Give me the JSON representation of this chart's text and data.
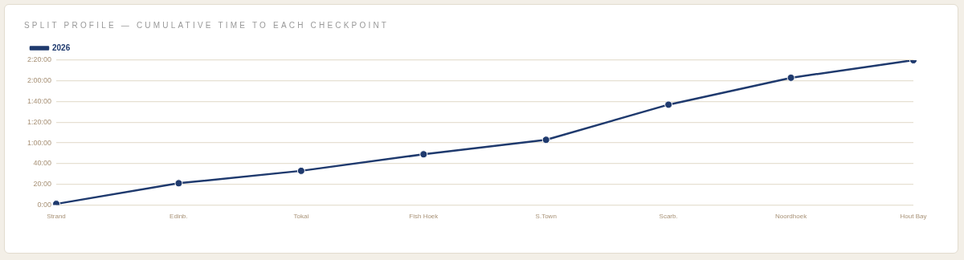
{
  "chart_data": {
    "type": "line",
    "title": "SPLIT PROFILE — CUMULATIVE TIME TO EACH CHECKPOINT",
    "categories": [
      "Strand",
      "Edinb.",
      "Tokai",
      "Fish Hoek",
      "S.Town",
      "Scarb.",
      "Noordhoek",
      "Hout Bay"
    ],
    "series": [
      {
        "name": "2026",
        "color": "#1f3a6e",
        "values": [
          1,
          21,
          33,
          49,
          63,
          97,
          123,
          140
        ]
      }
    ],
    "ylim": [
      0,
      140
    ],
    "yticks": [
      {
        "value": 0,
        "label": "0:00"
      },
      {
        "value": 20,
        "label": "20:00"
      },
      {
        "value": 40,
        "label": "40:00"
      },
      {
        "value": 60,
        "label": "1:00:00"
      },
      {
        "value": 80,
        "label": "1:20:00"
      },
      {
        "value": 100,
        "label": "1:40:00"
      },
      {
        "value": 120,
        "label": "2:00:00"
      },
      {
        "value": 140,
        "label": "2:20:00"
      }
    ],
    "grid": "y",
    "legend": "top left",
    "marker": "circle",
    "line_style": "solid"
  }
}
